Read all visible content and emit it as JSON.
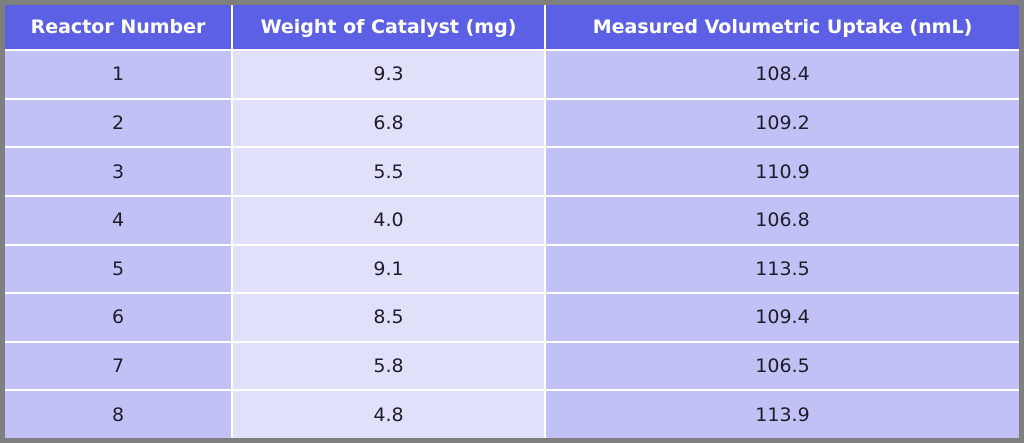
{
  "table": {
    "headers": [
      "Reactor Number",
      "Weight of Catalyst (mg)",
      "Measured Volumetric Uptake (nmL)"
    ],
    "rows": [
      [
        "1",
        "9.3",
        "108.4"
      ],
      [
        "2",
        "6.8",
        "109.2"
      ],
      [
        "3",
        "5.5",
        "110.9"
      ],
      [
        "4",
        "4.0",
        "106.8"
      ],
      [
        "5",
        "9.1",
        "113.5"
      ],
      [
        "6",
        "8.5",
        "109.4"
      ],
      [
        "7",
        "5.8",
        "106.5"
      ],
      [
        "8",
        "4.8",
        "113.9"
      ]
    ]
  },
  "colors": {
    "header": "#5c60e4",
    "column_dark": "#c1c1f5",
    "column_light": "#e0e0fb",
    "frame": "#7f7f7f"
  }
}
